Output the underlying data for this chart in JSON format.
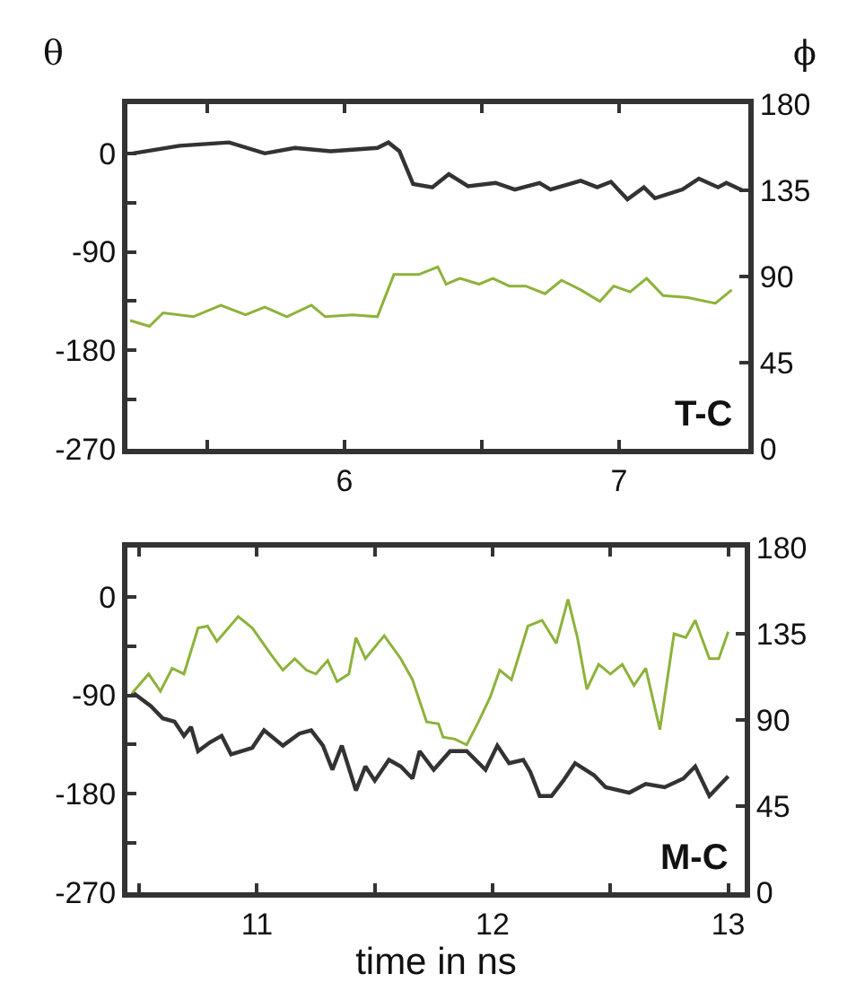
{
  "chart_data": [
    {
      "type": "line",
      "ylabel": "θ",
      "y2label": "ϕ",
      "annotations": [
        "T-C"
      ],
      "xlim": [
        5.21,
        7.47
      ],
      "xticks": [
        {
          "value": 5.5,
          "label": null
        },
        6,
        {
          "value": 6.5,
          "label": null
        },
        7
      ],
      "ylim": [
        -270,
        45
      ],
      "yticks": [
        -270,
        {
          "value": -225,
          "label": null
        },
        -180,
        {
          "value": -135,
          "label": null
        },
        -90,
        {
          "value": -45,
          "label": null
        },
        0
      ],
      "y2lim": [
        0,
        180
      ],
      "y2ticks": [
        0,
        45,
        90,
        135,
        180
      ],
      "marker": "none",
      "line_style": "solid",
      "series": [
        {
          "color": "#333333",
          "x": [
            5.23,
            5.4,
            5.58,
            5.71,
            5.82,
            5.95,
            6.12,
            6.16,
            6.2,
            6.25,
            6.32,
            6.38,
            6.45,
            6.55,
            6.62,
            6.71,
            6.75,
            6.86,
            6.92,
            6.97,
            7.03,
            7.09,
            7.13,
            7.23,
            7.29,
            7.36,
            7.39,
            7.45
          ],
          "values": [
            0,
            7,
            10,
            0,
            5,
            2,
            5,
            10,
            2,
            -28,
            -31,
            -19,
            -30,
            -27,
            -33,
            -27,
            -33,
            -25,
            -31,
            -26,
            -42,
            -31,
            -41,
            -33,
            -23,
            -31,
            -27,
            -34
          ]
        },
        {
          "color": "#8db23a",
          "axis": "y2",
          "x": [
            5.22,
            5.29,
            5.34,
            5.45,
            5.55,
            5.64,
            5.71,
            5.79,
            5.88,
            5.93,
            6.03,
            6.12,
            6.18,
            6.27,
            6.34,
            6.37,
            6.42,
            6.49,
            6.54,
            6.6,
            6.66,
            6.73,
            6.79,
            6.86,
            6.93,
            6.98,
            7.04,
            7.1,
            7.16,
            7.25,
            7.35,
            7.41
          ],
          "values": [
            67,
            64,
            71,
            69,
            75,
            70,
            74,
            69,
            75,
            69,
            70,
            69,
            91,
            91,
            95,
            86,
            89,
            86,
            89,
            85,
            85,
            81,
            88,
            83,
            77,
            85,
            82,
            89,
            80,
            79,
            76,
            83
          ]
        }
      ]
    },
    {
      "type": "line",
      "xlabel": "time in ns",
      "annotations": [
        "M-C"
      ],
      "xlim": [
        10.45,
        13.07
      ],
      "xticks": [
        {
          "value": 10.5,
          "label": null
        },
        11,
        {
          "value": 11.5,
          "label": null
        },
        12,
        {
          "value": 12.5,
          "label": null
        },
        13
      ],
      "ylim": [
        -270,
        45
      ],
      "yticks": [
        -270,
        {
          "value": -225,
          "label": null
        },
        -180,
        {
          "value": -135,
          "label": null
        },
        -90,
        {
          "value": -45,
          "label": null
        },
        0
      ],
      "y2lim": [
        0,
        180
      ],
      "y2ticks": [
        0,
        45,
        90,
        135,
        180
      ],
      "marker": "none",
      "line_style": "solid",
      "series": [
        {
          "color": "#333333",
          "x": [
            10.47,
            10.55,
            10.6,
            10.65,
            10.69,
            10.72,
            10.75,
            10.8,
            10.85,
            10.89,
            10.98,
            11.03,
            11.11,
            11.18,
            11.23,
            11.28,
            11.32,
            11.36,
            11.42,
            11.46,
            11.5,
            11.56,
            11.61,
            11.66,
            11.69,
            11.75,
            11.82,
            11.89,
            11.97,
            12.02,
            12.07,
            12.13,
            12.16,
            12.2,
            12.25,
            12.3,
            12.35,
            12.43,
            12.48,
            12.58,
            12.65,
            12.73,
            12.81,
            12.86,
            12.92,
            13.0
          ],
          "values": [
            -87,
            -100,
            -111,
            -114,
            -127,
            -119,
            -141,
            -133,
            -127,
            -144,
            -138,
            -122,
            -136,
            -125,
            -122,
            -136,
            -158,
            -136,
            -177,
            -155,
            -168,
            -149,
            -155,
            -166,
            -141,
            -158,
            -141,
            -141,
            -158,
            -136,
            -152,
            -149,
            -160,
            -182,
            -182,
            -168,
            -152,
            -163,
            -174,
            -179,
            -171,
            -174,
            -166,
            -155,
            -182,
            -164
          ]
        },
        {
          "color": "#8db23a",
          "axis": "y2",
          "x": [
            10.47,
            10.54,
            10.59,
            10.64,
            10.69,
            10.75,
            10.79,
            10.83,
            10.92,
            10.98,
            11.06,
            11.11,
            11.16,
            11.21,
            11.25,
            11.3,
            11.34,
            11.39,
            11.42,
            11.46,
            11.54,
            11.61,
            11.66,
            11.72,
            11.77,
            11.79,
            11.84,
            11.89,
            11.94,
            11.99,
            12.03,
            12.08,
            12.15,
            12.21,
            12.27,
            12.32,
            12.36,
            12.4,
            12.45,
            12.5,
            12.55,
            12.6,
            12.65,
            12.71,
            12.77,
            12.82,
            12.86,
            12.92,
            12.96,
            13.0
          ],
          "values": [
            104,
            114,
            105,
            117,
            114,
            138,
            139,
            131,
            144,
            138,
            124,
            116,
            122,
            116,
            114,
            121,
            110,
            114,
            133,
            122,
            134,
            122,
            111,
            89,
            88,
            81,
            80,
            77,
            89,
            102,
            116,
            111,
            139,
            142,
            130,
            153,
            133,
            106,
            119,
            114,
            119,
            108,
            117,
            85,
            135,
            133,
            142,
            122,
            122,
            136
          ]
        }
      ]
    }
  ]
}
